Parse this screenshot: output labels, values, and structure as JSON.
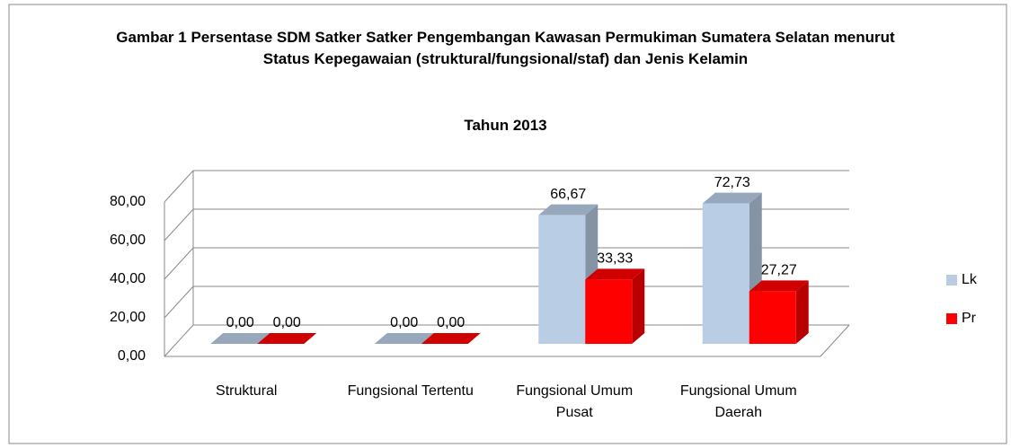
{
  "chart_data": {
    "type": "bar3d",
    "title": "Gambar 1 Persentase SDM Satker Satker Pengembangan Kawasan Permukiman Sumatera Selatan menurut Status Kepegawaian (struktural/fungsional/staf) dan Jenis Kelamin",
    "subtitle": "Tahun 2013",
    "categories": [
      "Struktural",
      "Fungsional Tertentu",
      "Fungsional Umum Pusat",
      "Fungsional Umum Daerah"
    ],
    "series": [
      {
        "name": "Lk",
        "color": "#b9cde5",
        "values": [
          0,
          0,
          66.67,
          72.73
        ],
        "value_labels": [
          "0,00",
          "0,00",
          "66,67",
          "72,73"
        ]
      },
      {
        "name": "Pr",
        "color": "#ff0000",
        "values": [
          0,
          0,
          33.33,
          27.27
        ],
        "value_labels": [
          "0,00",
          "0,00",
          "33,33",
          "27,27"
        ]
      }
    ],
    "ylim": [
      0,
      80
    ],
    "yticks": [
      {
        "value": 0,
        "label": "0,00"
      },
      {
        "value": 20,
        "label": "20,00"
      },
      {
        "value": 40,
        "label": "40,00"
      },
      {
        "value": 60,
        "label": "60,00"
      },
      {
        "value": 80,
        "label": "80,00"
      }
    ],
    "grid": true,
    "legend": "right"
  }
}
